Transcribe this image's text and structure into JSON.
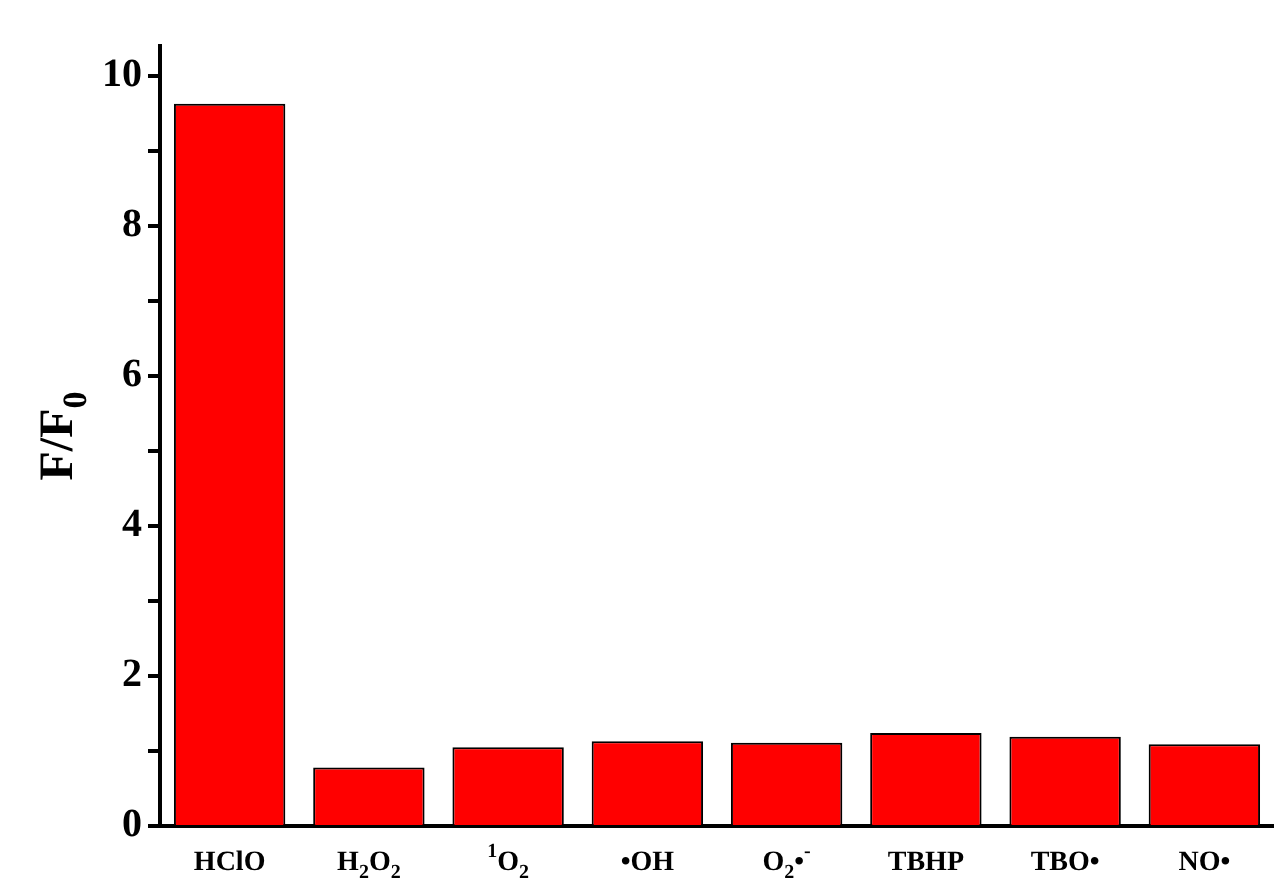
{
  "chart_data": {
    "type": "bar",
    "ylabel": "F/F$_{0}$",
    "categories": [
      "HClO",
      "H$_{2}$O$_{2}$",
      "$^{1}$O$_{2}$",
      "•OH",
      "O$_{2}$•$^{-}$",
      "TBHP",
      "TBO•",
      "NO•"
    ],
    "values": [
      9.63,
      0.78,
      1.05,
      1.13,
      1.11,
      1.24,
      1.19,
      1.09
    ],
    "color": "#ff0000",
    "ylim": [
      0,
      10.4
    ],
    "yticks": [
      0,
      {
        "value": 1,
        "label": null
      },
      2,
      {
        "value": 3,
        "label": null
      },
      4,
      {
        "value": 5,
        "label": null
      },
      6,
      {
        "value": 7,
        "label": null
      },
      8,
      {
        "value": 9,
        "label": null
      },
      10
    ],
    "grid": false,
    "legend": false
  }
}
